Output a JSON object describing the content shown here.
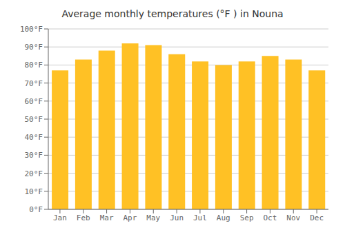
{
  "chart_data": {
    "type": "bar",
    "title": "Average monthly temperatures (°F ) in Nouna",
    "categories": [
      "Jan",
      "Feb",
      "Mar",
      "Apr",
      "May",
      "Jun",
      "Jul",
      "Aug",
      "Sep",
      "Oct",
      "Nov",
      "Dec"
    ],
    "values": [
      77,
      83,
      88,
      92,
      91,
      86,
      82,
      80,
      82,
      85,
      83,
      77
    ],
    "color": "#FFC125",
    "ylim": [
      0,
      100
    ],
    "yticks": [
      {
        "value": 0,
        "label": "0°F"
      },
      {
        "value": 10,
        "label": "10°F"
      },
      {
        "value": 20,
        "label": "20°F"
      },
      {
        "value": 30,
        "label": "30°F"
      },
      {
        "value": 40,
        "label": "40°F"
      },
      {
        "value": 50,
        "label": "50°F"
      },
      {
        "value": 60,
        "label": "60°F"
      },
      {
        "value": 70,
        "label": "70°F"
      },
      {
        "value": 80,
        "label": "80°F"
      },
      {
        "value": 90,
        "label": "90°F"
      },
      {
        "value": 100,
        "label": "100°F"
      }
    ],
    "grid": true
  }
}
